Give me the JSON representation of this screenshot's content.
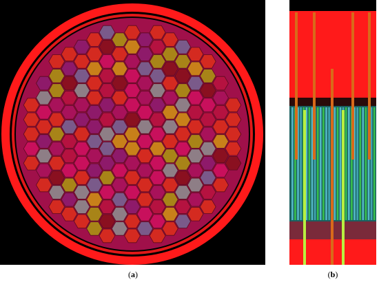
{
  "captions": {
    "a": "a",
    "b": "b"
  },
  "colors": {
    "background": "#000000",
    "reflector": "#ff1a1a",
    "core_base": "#a0104a",
    "assembly_fill": [
      "#c8105c",
      "#a8125a",
      "#8e1a6a",
      "#b51240",
      "#d42a20",
      "#8a1020",
      "#8e7e86",
      "#7a5a8a",
      "#c8801a",
      "#a88418"
    ],
    "coolant_lightblue": "#5ec8d8",
    "coolant_green": "#3ed04a",
    "rod_orange": "#d86a1a",
    "rod_lightgreen": "#b8f040"
  },
  "views": {
    "a": {
      "name": "radial-core-section"
    },
    "b": {
      "name": "axial-core-section"
    }
  }
}
